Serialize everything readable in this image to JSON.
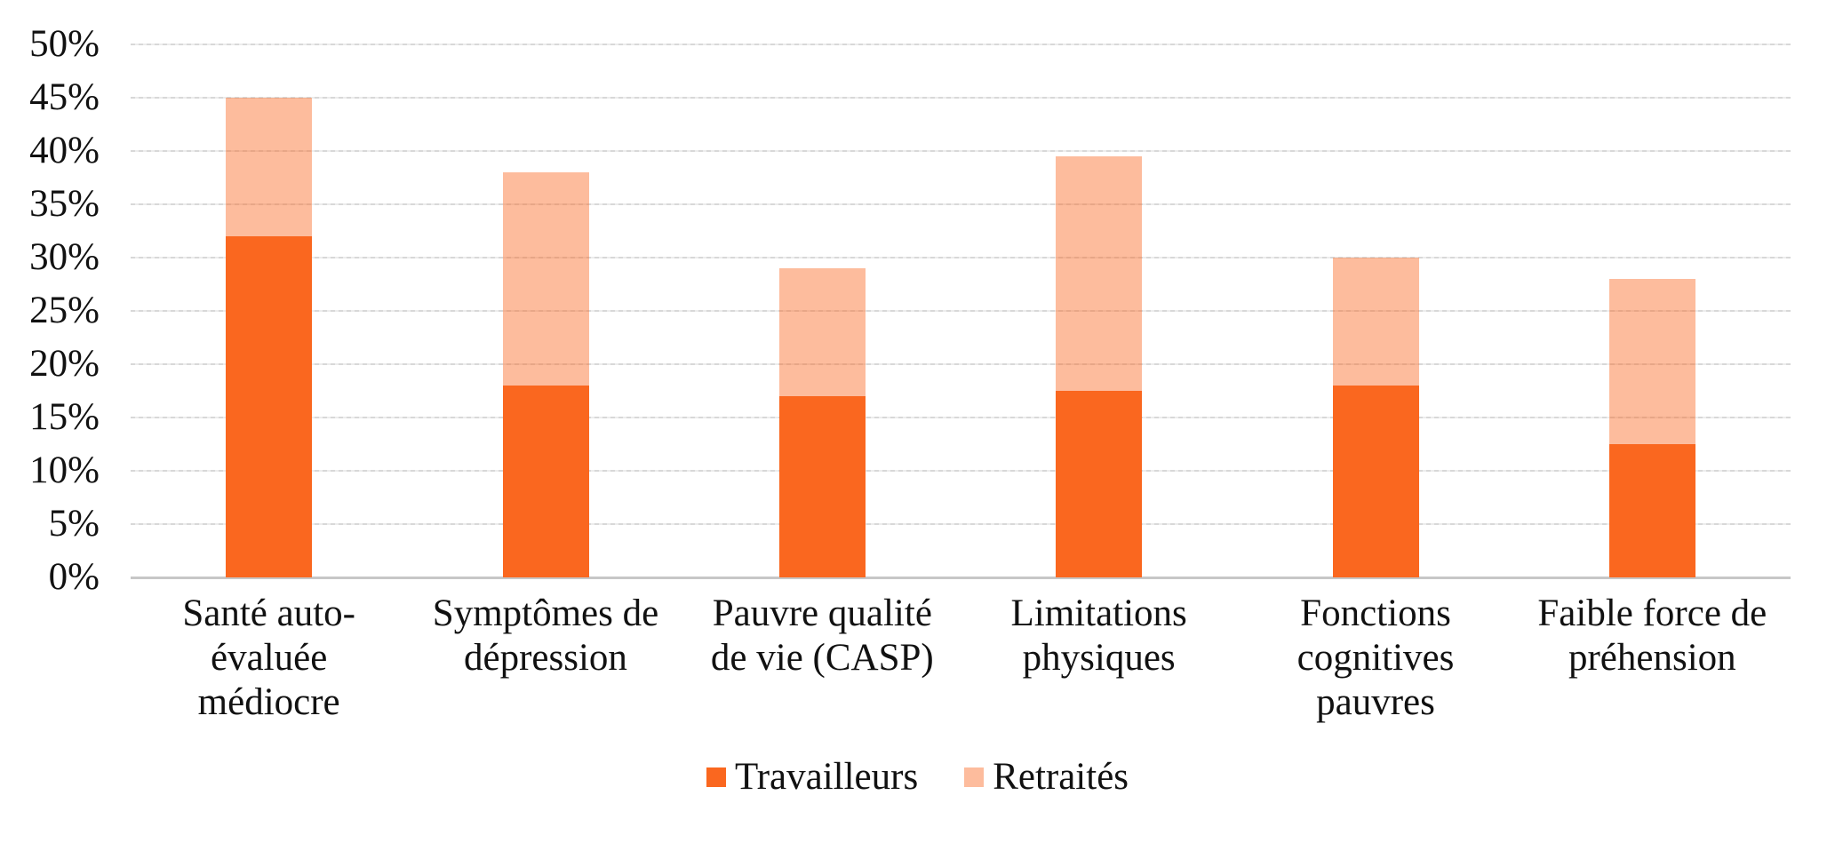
{
  "chart_data": {
    "type": "bar",
    "stacked": true,
    "title": "",
    "xlabel": "",
    "ylabel": "",
    "grid": true,
    "legend_position": "bottom",
    "ylim": [
      0,
      50
    ],
    "ytick_step": 5,
    "ytick_labels": [
      "0%",
      "5%",
      "10%",
      "15%",
      "20%",
      "25%",
      "30%",
      "35%",
      "40%",
      "45%",
      "50%"
    ],
    "categories": [
      "Santé auto-\névaluée\nmédiocre",
      "Symptômes de\ndépression",
      "Pauvre qualité\nde vie (CASP)",
      "Limitations\nphysiques",
      "Fonctions\ncognitives\npauvres",
      "Faible force de\npréhension"
    ],
    "series": [
      {
        "name": "Travailleurs",
        "color": "#FA671F",
        "fill": "#FA671F",
        "values": [
          32,
          18,
          17,
          17.5,
          18,
          12.5
        ]
      },
      {
        "name": "Retraités",
        "color": "#FCBA9A",
        "fill": "rgba(250,103,31,0.44)",
        "values": [
          13,
          20,
          12,
          22,
          12,
          15.5
        ]
      }
    ],
    "stack_totals": [
      45,
      38,
      29,
      39.5,
      30,
      28
    ],
    "colors": {
      "gridline": "#D8D8D8",
      "axis_line": "#C7C7C7",
      "text": "#111111",
      "background": "#FFFFFF"
    }
  }
}
